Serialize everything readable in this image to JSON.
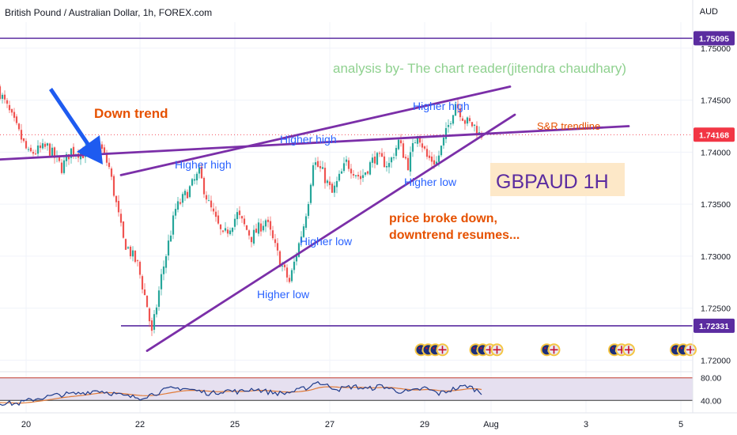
{
  "header": {
    "symbol_title": "British Pound / Australian Dollar, 1h, FOREX.com",
    "currency": "AUD"
  },
  "colors": {
    "up": "#26a69a",
    "down": "#ef5350",
    "trendline": "#7b2fa8",
    "horizontal": "#5a2ca0",
    "arrow": "#1e5bf0",
    "label_blue": "#2962ff",
    "label_orange": "#e65100",
    "analysis_text": "#8fd18f",
    "title_box": "#fde8c8",
    "title_text": "#5b2ca0",
    "price_tag_bg": "#5b2ca0",
    "current_tag_bg": "#f23645",
    "rsi_line": "#1e3a8a",
    "rsi_ma": "#e07b39",
    "rsi_band": "#e6e0f0"
  },
  "chart_data": {
    "type": "candlestick",
    "title": "British Pound / Australian Dollar, 1h, FOREX.com",
    "y_axis": {
      "ticks": [
        "1.75000",
        "1.74500",
        "1.74000",
        "1.73500",
        "1.73000",
        "1.72500",
        "1.72000"
      ],
      "tick_values": [
        1.75,
        1.745,
        1.74,
        1.735,
        1.73,
        1.725,
        1.72
      ],
      "range": [
        1.7195,
        1.7525
      ]
    },
    "x_axis": {
      "ticks": [
        "20",
        "22",
        "25",
        "27",
        "29",
        "Aug",
        "3",
        "5"
      ],
      "tick_positions": [
        1,
        25,
        45,
        65,
        85,
        99,
        119,
        139
      ]
    },
    "x_range": [
      -4.5,
      141.5
    ],
    "price_tags": [
      {
        "label": "1.75095",
        "value": 1.75095,
        "kind": "horizontal"
      },
      {
        "label": "1.74168",
        "value": 1.74168,
        "kind": "current"
      },
      {
        "label": "1.72331",
        "value": 1.72331,
        "kind": "horizontal"
      }
    ],
    "horizontal_lines": [
      {
        "value": 1.75095,
        "x_from": -4.5
      },
      {
        "value": 1.72331,
        "x_from": 21
      }
    ],
    "trendlines": [
      {
        "name": "down-trendline",
        "from": [
          -4.5,
          1.7393
        ],
        "to": [
          128,
          1.7425
        ]
      },
      {
        "name": "upper-channel",
        "from": [
          21,
          1.7378
        ],
        "to": [
          103,
          1.7463
        ]
      },
      {
        "name": "lower-channel",
        "from": [
          26.5,
          1.7209
        ],
        "to": [
          104,
          1.7436
        ]
      }
    ],
    "ohlc_knots": [
      [
        -4.5,
        1.7462
      ],
      [
        -2,
        1.7438
      ],
      [
        2,
        1.7398
      ],
      [
        6,
        1.7405
      ],
      [
        9,
        1.7385
      ],
      [
        11,
        1.7402
      ],
      [
        14,
        1.7398
      ],
      [
        17,
        1.7407
      ],
      [
        19,
        1.7385
      ],
      [
        22,
        1.7315
      ],
      [
        25,
        1.7292
      ],
      [
        27,
        1.7252
      ],
      [
        28,
        1.7225
      ],
      [
        30,
        1.728
      ],
      [
        33,
        1.7345
      ],
      [
        36,
        1.7365
      ],
      [
        38,
        1.738
      ],
      [
        40,
        1.735
      ],
      [
        43,
        1.7318
      ],
      [
        46,
        1.734
      ],
      [
        49,
        1.7318
      ],
      [
        52,
        1.7335
      ],
      [
        55,
        1.7295
      ],
      [
        57,
        1.7275
      ],
      [
        60,
        1.733
      ],
      [
        61,
        1.7355
      ],
      [
        62,
        1.7392
      ],
      [
        64,
        1.738
      ],
      [
        66,
        1.736
      ],
      [
        69,
        1.739
      ],
      [
        72,
        1.7375
      ],
      [
        75,
        1.7395
      ],
      [
        78,
        1.7388
      ],
      [
        80,
        1.741
      ],
      [
        82,
        1.7388
      ],
      [
        84,
        1.742
      ],
      [
        86,
        1.7395
      ],
      [
        88,
        1.739
      ],
      [
        90,
        1.7418
      ],
      [
        92,
        1.7448
      ],
      [
        94,
        1.743
      ],
      [
        96,
        1.7425
      ],
      [
        97,
        1.7417
      ]
    ],
    "rsi": {
      "ticks": [
        "80.00",
        "40.00"
      ],
      "tick_values": [
        80,
        40
      ],
      "range": [
        25,
        88
      ],
      "knots": [
        [
          -4.5,
          36
        ],
        [
          -1,
          34
        ],
        [
          3,
          43
        ],
        [
          8,
          50
        ],
        [
          12,
          52
        ],
        [
          16,
          58
        ],
        [
          19,
          53
        ],
        [
          22,
          47
        ],
        [
          25,
          45
        ],
        [
          28,
          52
        ],
        [
          31,
          60
        ],
        [
          34,
          62
        ],
        [
          37,
          57
        ],
        [
          40,
          52
        ],
        [
          43,
          58
        ],
        [
          46,
          55
        ],
        [
          49,
          61
        ],
        [
          52,
          55
        ],
        [
          55,
          52
        ],
        [
          58,
          57
        ],
        [
          61,
          65
        ],
        [
          62,
          74
        ],
        [
          64,
          67
        ],
        [
          67,
          60
        ],
        [
          70,
          65
        ],
        [
          73,
          60
        ],
        [
          76,
          66
        ],
        [
          79,
          57
        ],
        [
          82,
          55
        ],
        [
          85,
          62
        ],
        [
          88,
          52
        ],
        [
          91,
          60
        ],
        [
          94,
          66
        ],
        [
          96,
          58
        ],
        [
          97,
          53
        ]
      ]
    },
    "title_label": "GBPAUD 1H"
  },
  "annotations": {
    "analysis": "analysis by- The chart reader(jitendra chaudhary)",
    "down_trend": "Down trend",
    "snr_trendline": "S&R trendline",
    "higher_high_top": "Higher high",
    "higher_high_mid": "Higher high",
    "higher_high_left": "Higher high",
    "higher_low_right": "Higher low",
    "higher_low_mid": "Higher low",
    "higher_low_bottom": "Higher low",
    "price_broke_1": "price broke down,",
    "price_broke_2": "downtrend resumes..."
  },
  "event_markers": {
    "groups": [
      {
        "x": 86.5,
        "flags": [
          "au",
          "au",
          "au",
          "gb"
        ]
      },
      {
        "x": 98,
        "flags": [
          "au",
          "au",
          "gb",
          "gb"
        ]
      },
      {
        "x": 111.5,
        "flags": [
          "au",
          "gb"
        ]
      },
      {
        "x": 126.5,
        "flags": [
          "au",
          "gb",
          "gb"
        ]
      },
      {
        "x": 139.5,
        "flags": [
          "au",
          "au",
          "gb"
        ]
      }
    ]
  }
}
